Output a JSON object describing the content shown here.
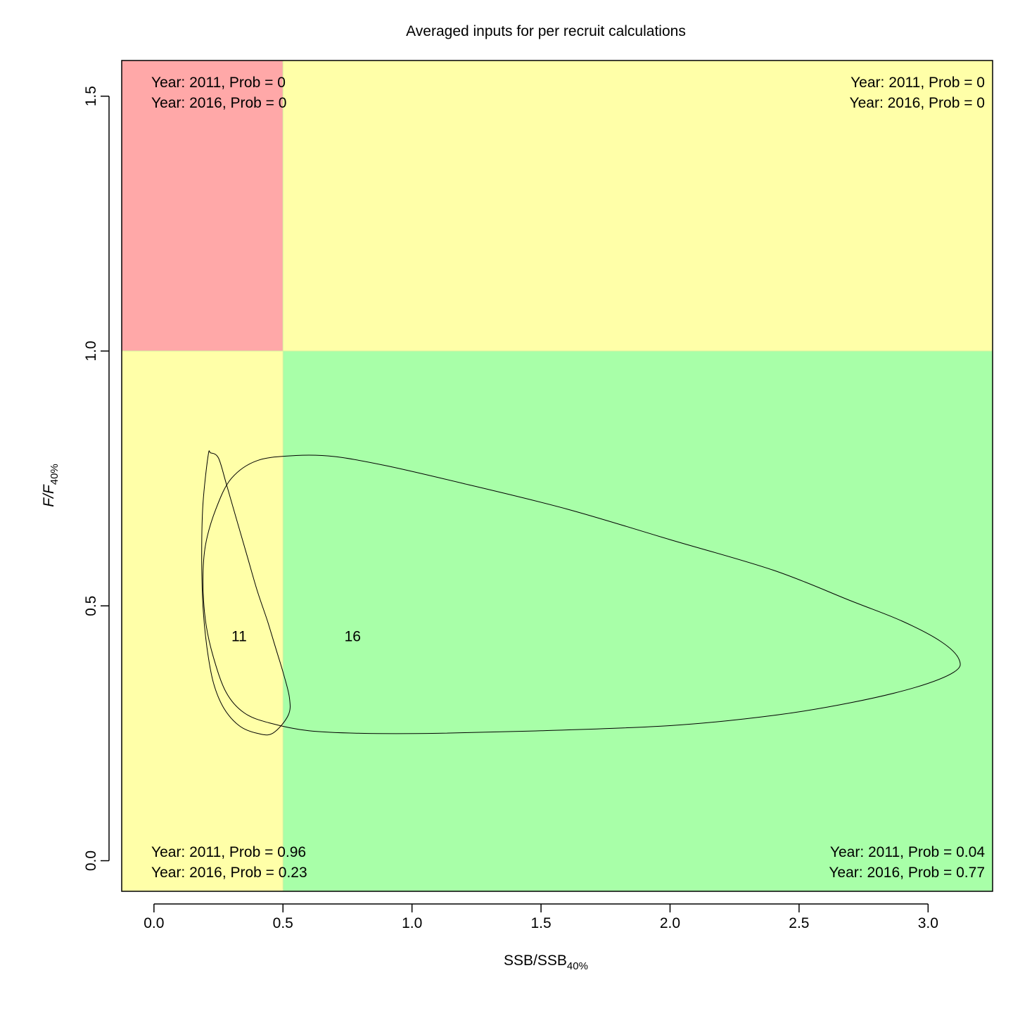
{
  "chart_data": {
    "type": "contour",
    "title": "Averaged inputs for per recruit calculations",
    "xlabel": {
      "main": "SSB/SSB",
      "sub": "40%"
    },
    "ylabel": {
      "main": "F/F",
      "sub": "40%"
    },
    "xlim": [
      -0.125,
      3.25
    ],
    "ylim": [
      -0.06,
      1.57
    ],
    "x_ticks": [
      {
        "value": 0.0,
        "label": "0.0"
      },
      {
        "value": 0.5,
        "label": "0.5"
      },
      {
        "value": 1.0,
        "label": "1.0"
      },
      {
        "value": 1.5,
        "label": "1.5"
      },
      {
        "value": 2.0,
        "label": "2.0"
      },
      {
        "value": 2.5,
        "label": "2.5"
      },
      {
        "value": 3.0,
        "label": "3.0"
      }
    ],
    "y_ticks": [
      {
        "value": 0.0,
        "label": "0.0"
      },
      {
        "value": 0.5,
        "label": "0.5"
      },
      {
        "value": 1.0,
        "label": "1.0"
      },
      {
        "value": 1.5,
        "label": "1.5"
      }
    ],
    "reference_lines": {
      "x": 0.5,
      "y": 1.0
    },
    "quadrants": [
      {
        "name": "top-left",
        "color": "#ffa8a8",
        "x": [
          -0.125,
          0.5
        ],
        "y": [
          1.0,
          1.57
        ],
        "lines": [
          "Year: 2011, Prob = 0",
          "Year: 2016, Prob = 0"
        ]
      },
      {
        "name": "top-right",
        "color": "#ffffa8",
        "x": [
          0.5,
          3.25
        ],
        "y": [
          1.0,
          1.57
        ],
        "lines": [
          "Year: 2011, Prob = 0",
          "Year: 2016, Prob = 0"
        ]
      },
      {
        "name": "bottom-left",
        "color": "#ffffa8",
        "x": [
          -0.125,
          0.5
        ],
        "y": [
          -0.06,
          1.0
        ],
        "lines": [
          "Year: 2011, Prob = 0.96",
          "Year: 2016, Prob = 0.23"
        ]
      },
      {
        "name": "bottom-right",
        "color": "#a8ffa8",
        "x": [
          0.5,
          3.25
        ],
        "y": [
          -0.06,
          1.0
        ],
        "lines": [
          "Year: 2011, Prob = 0.04",
          "Year: 2016, Prob = 0.77"
        ]
      }
    ],
    "series": [
      {
        "name": "11",
        "label_point": [
          0.33,
          0.44
        ],
        "points": [
          [
            0.21,
            0.795
          ],
          [
            0.19,
            0.7
          ],
          [
            0.185,
            0.6
          ],
          [
            0.19,
            0.5
          ],
          [
            0.205,
            0.42
          ],
          [
            0.23,
            0.35
          ],
          [
            0.27,
            0.3
          ],
          [
            0.33,
            0.265
          ],
          [
            0.4,
            0.25
          ],
          [
            0.46,
            0.25
          ],
          [
            0.52,
            0.285
          ],
          [
            0.525,
            0.32
          ],
          [
            0.5,
            0.37
          ],
          [
            0.47,
            0.42
          ],
          [
            0.44,
            0.47
          ],
          [
            0.4,
            0.53
          ],
          [
            0.36,
            0.6
          ],
          [
            0.32,
            0.67
          ],
          [
            0.28,
            0.74
          ],
          [
            0.25,
            0.79
          ],
          [
            0.22,
            0.8
          ]
        ]
      },
      {
        "name": "16",
        "label_point": [
          0.77,
          0.44
        ],
        "points": [
          [
            0.55,
            0.795
          ],
          [
            0.4,
            0.785
          ],
          [
            0.3,
            0.75
          ],
          [
            0.24,
            0.69
          ],
          [
            0.2,
            0.62
          ],
          [
            0.19,
            0.55
          ],
          [
            0.2,
            0.47
          ],
          [
            0.23,
            0.4
          ],
          [
            0.28,
            0.33
          ],
          [
            0.35,
            0.29
          ],
          [
            0.45,
            0.27
          ],
          [
            0.6,
            0.255
          ],
          [
            0.8,
            0.25
          ],
          [
            1.1,
            0.25
          ],
          [
            1.5,
            0.255
          ],
          [
            2.0,
            0.265
          ],
          [
            2.4,
            0.285
          ],
          [
            2.7,
            0.31
          ],
          [
            2.95,
            0.34
          ],
          [
            3.1,
            0.37
          ],
          [
            3.12,
            0.395
          ],
          [
            3.05,
            0.43
          ],
          [
            2.9,
            0.47
          ],
          [
            2.7,
            0.51
          ],
          [
            2.4,
            0.57
          ],
          [
            2.0,
            0.63
          ],
          [
            1.6,
            0.69
          ],
          [
            1.2,
            0.74
          ],
          [
            0.9,
            0.775
          ],
          [
            0.7,
            0.793
          ]
        ]
      }
    ]
  }
}
